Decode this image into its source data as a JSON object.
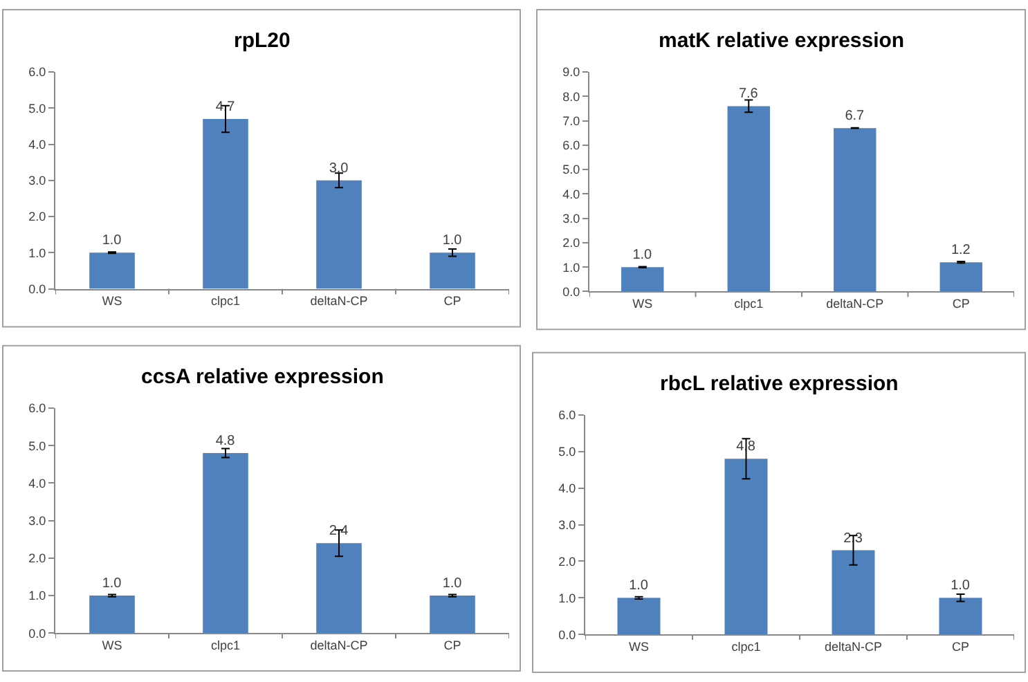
{
  "chart_data": [
    {
      "type": "bar",
      "title": "rpL20",
      "categories": [
        "WS",
        "clpc1",
        "deltaN-CP",
        "CP"
      ],
      "values": [
        1.0,
        4.7,
        3.0,
        1.0
      ],
      "errors": [
        0.02,
        0.37,
        0.2,
        0.1
      ],
      "value_labels": [
        "1.0",
        "4.7",
        "3.0",
        "1.0"
      ],
      "color": "#4f81bd",
      "ylim": [
        0,
        6
      ],
      "yticks": [
        {
          "value": 0,
          "label": "0.0"
        },
        {
          "value": 1,
          "label": "1.0"
        },
        {
          "value": 2,
          "label": "2.0"
        },
        {
          "value": 3,
          "label": "3.0"
        },
        {
          "value": 4,
          "label": "4.0"
        },
        {
          "value": 5,
          "label": "5.0"
        },
        {
          "value": 6,
          "label": "6.0"
        }
      ]
    },
    {
      "type": "bar",
      "title": "matK relative expression",
      "categories": [
        "WS",
        "clpc1",
        "deltaN-CP",
        "CP"
      ],
      "values": [
        1.0,
        7.6,
        6.7,
        1.2
      ],
      "errors": [
        0.02,
        0.25,
        0.01,
        0.03
      ],
      "value_labels": [
        "1.0",
        "7.6",
        "6.7",
        "1.2"
      ],
      "color": "#4f81bd",
      "ylim": [
        0,
        9
      ],
      "yticks": [
        {
          "value": 0,
          "label": "0.0"
        },
        {
          "value": 1,
          "label": "1.0"
        },
        {
          "value": 2,
          "label": "2.0"
        },
        {
          "value": 3,
          "label": "3.0"
        },
        {
          "value": 4,
          "label": "4.0"
        },
        {
          "value": 5,
          "label": "5.0"
        },
        {
          "value": 6,
          "label": "6.0"
        },
        {
          "value": 7,
          "label": "7.0"
        },
        {
          "value": 8,
          "label": "8.0"
        },
        {
          "value": 9,
          "label": "9.0"
        }
      ]
    },
    {
      "type": "bar",
      "title": "ccsA relative expression",
      "categories": [
        "WS",
        "clpc1",
        "deltaN-CP",
        "CP"
      ],
      "values": [
        1.0,
        4.8,
        2.4,
        1.0
      ],
      "errors": [
        0.03,
        0.12,
        0.35,
        0.03
      ],
      "value_labels": [
        "1.0",
        "4.8",
        "2.4",
        "1.0"
      ],
      "color": "#4f81bd",
      "ylim": [
        0,
        6
      ],
      "yticks": [
        {
          "value": 0,
          "label": "0.0"
        },
        {
          "value": 1,
          "label": "1.0"
        },
        {
          "value": 2,
          "label": "2.0"
        },
        {
          "value": 3,
          "label": "3.0"
        },
        {
          "value": 4,
          "label": "4.0"
        },
        {
          "value": 5,
          "label": "5.0"
        },
        {
          "value": 6,
          "label": "6.0"
        }
      ]
    },
    {
      "type": "bar",
      "title": "rbcL relative expression",
      "categories": [
        "WS",
        "clpc1",
        "deltaN-CP",
        "CP"
      ],
      "values": [
        1.0,
        4.8,
        2.3,
        1.0
      ],
      "errors": [
        0.03,
        0.55,
        0.4,
        0.1
      ],
      "value_labels": [
        "1.0",
        "4.8",
        "2.3",
        "1.0"
      ],
      "color": "#4f81bd",
      "ylim": [
        0,
        6
      ],
      "yticks": [
        {
          "value": 0,
          "label": "0.0"
        },
        {
          "value": 1,
          "label": "1.0"
        },
        {
          "value": 2,
          "label": "2.0"
        },
        {
          "value": 3,
          "label": "3.0"
        },
        {
          "value": 4,
          "label": "4.0"
        },
        {
          "value": 5,
          "label": "5.0"
        },
        {
          "value": 6,
          "label": "6.0"
        }
      ]
    }
  ]
}
